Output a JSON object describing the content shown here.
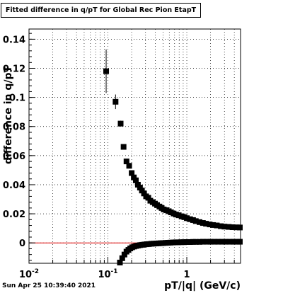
{
  "title": "Fitted difference in q/pT for Global Rec Pion EtapT",
  "timestamp": "Sun Apr 25 10:39:40 2021",
  "colors": {
    "frame": "#000000",
    "grid": "#000000",
    "markers": "#000000",
    "reference_line": "#dd0000"
  },
  "chart_data": {
    "type": "scatter",
    "title": "Fitted difference in q/pT for Global Rec Pion EtapT",
    "xlabel": "pT/|q| (GeV/c)",
    "ylabel": "difference in q/pT",
    "xscale": "log",
    "xlim": [
      0.01,
      4.8
    ],
    "ylim": [
      -0.014,
      0.147
    ],
    "grid": true,
    "x_ticks": [
      {
        "value": 0.01,
        "label": "10",
        "exp": "-2"
      },
      {
        "value": 0.1,
        "label": "10",
        "exp": "-1"
      },
      {
        "value": 1,
        "label": "1",
        "exp": ""
      }
    ],
    "y_ticks": [
      {
        "value": 0,
        "label": "0"
      },
      {
        "value": 0.02,
        "label": "0.02"
      },
      {
        "value": 0.04,
        "label": "0.04"
      },
      {
        "value": 0.06,
        "label": "0.06"
      },
      {
        "value": 0.08,
        "label": "0.08"
      },
      {
        "value": 0.1,
        "label": "0.1"
      },
      {
        "value": 0.12,
        "label": "0.12"
      },
      {
        "value": 0.14,
        "label": "0.14"
      }
    ],
    "reference_line": {
      "y": 0
    },
    "series": [
      {
        "x": [
          0.095,
          0.125,
          0.145,
          0.158,
          0.172,
          0.186,
          0.2,
          0.213,
          0.226,
          0.24,
          0.255,
          0.27,
          0.287,
          0.305,
          0.325,
          0.345,
          0.37,
          0.395,
          0.42,
          0.45,
          0.48,
          0.51,
          0.55,
          0.59,
          0.63,
          0.68,
          0.73,
          0.79,
          0.86,
          0.93,
          1.0,
          1.1,
          1.2,
          1.3,
          1.45,
          1.6,
          1.75,
          1.95,
          2.15,
          2.4,
          2.7,
          3.0,
          3.4,
          3.8,
          4.3,
          4.7
        ],
        "y": [
          0.118,
          0.097,
          0.082,
          0.066,
          0.056,
          0.053,
          0.048,
          0.045,
          0.043,
          0.04,
          0.038,
          0.036,
          0.034,
          0.032,
          0.031,
          0.029,
          0.028,
          0.027,
          0.026,
          0.025,
          0.024,
          0.023,
          0.0225,
          0.0218,
          0.021,
          0.0202,
          0.0195,
          0.019,
          0.0182,
          0.0177,
          0.017,
          0.0163,
          0.0157,
          0.015,
          0.0143,
          0.0137,
          0.0132,
          0.0127,
          0.0123,
          0.012,
          0.0115,
          0.0112,
          0.011,
          0.0108,
          0.0107,
          0.0106
        ],
        "yerr": [
          0.015,
          0.005,
          0.002,
          0.001,
          0.001,
          0.001,
          0.0008,
          0.0008,
          0.0006,
          0.0006,
          0.0005,
          0.0005,
          0.0005,
          0.0004,
          0.0004,
          0.0004,
          0.0004,
          0.0003,
          0.0003,
          0.0003,
          0.0003,
          0.0003,
          0.0003,
          0.0003,
          0.0003,
          0.0003,
          0.0003,
          0.0003,
          0.0003,
          0.0003,
          0.0003,
          0.0003,
          0.0003,
          0.0003,
          0.0003,
          0.0003,
          0.0003,
          0.0003,
          0.0003,
          0.0003,
          0.0003,
          0.0003,
          0.0003,
          0.0003,
          0.0003,
          0.0003
        ]
      },
      {
        "x": [
          0.142,
          0.152,
          0.162,
          0.172,
          0.182,
          0.192,
          0.203,
          0.215,
          0.228,
          0.242,
          0.257,
          0.273,
          0.29,
          0.31,
          0.33,
          0.355,
          0.38,
          0.41,
          0.44,
          0.47,
          0.5,
          0.54,
          0.58,
          0.62,
          0.67,
          0.72,
          0.78,
          0.85,
          0.92,
          1.0,
          1.1,
          1.2,
          1.3,
          1.45,
          1.6,
          1.8,
          2.0,
          2.25,
          2.5,
          2.8,
          3.1,
          3.5,
          3.9,
          4.4,
          4.7
        ],
        "y": [
          -0.0135,
          -0.0105,
          -0.008,
          -0.006,
          -0.0048,
          -0.0038,
          -0.003,
          -0.0025,
          -0.0021,
          -0.0018,
          -0.0015,
          -0.0013,
          -0.0011,
          -0.0009,
          -0.0008,
          -0.0006,
          -0.0005,
          -0.0004,
          -0.0003,
          -0.0002,
          -0.0001,
          0.0,
          0.0001,
          0.0002,
          0.0003,
          0.0004,
          0.0004,
          0.0005,
          0.0005,
          0.0006,
          0.0006,
          0.0007,
          0.0007,
          0.0007,
          0.0008,
          0.0008,
          0.0008,
          0.0008,
          0.0008,
          0.0008,
          0.0008,
          0.0008,
          0.0008,
          0.0008,
          0.0008
        ],
        "yerr": [
          0.001,
          0.0008,
          0.0006,
          0.0005,
          0.0004,
          0.0004,
          0.0003,
          0.0003,
          0.0003,
          0.0003,
          0.0003,
          0.0003,
          0.0003,
          0.0003,
          0.0003,
          0.0003,
          0.0003,
          0.0003,
          0.0003,
          0.0003,
          0.0003,
          0.0003,
          0.0003,
          0.0003,
          0.0003,
          0.0003,
          0.0003,
          0.0003,
          0.0003,
          0.0003,
          0.0003,
          0.0003,
          0.0003,
          0.0003,
          0.0003,
          0.0003,
          0.0003,
          0.0003,
          0.0003,
          0.0003,
          0.0003,
          0.0003,
          0.0003,
          0.0003,
          0.0003
        ]
      }
    ]
  }
}
